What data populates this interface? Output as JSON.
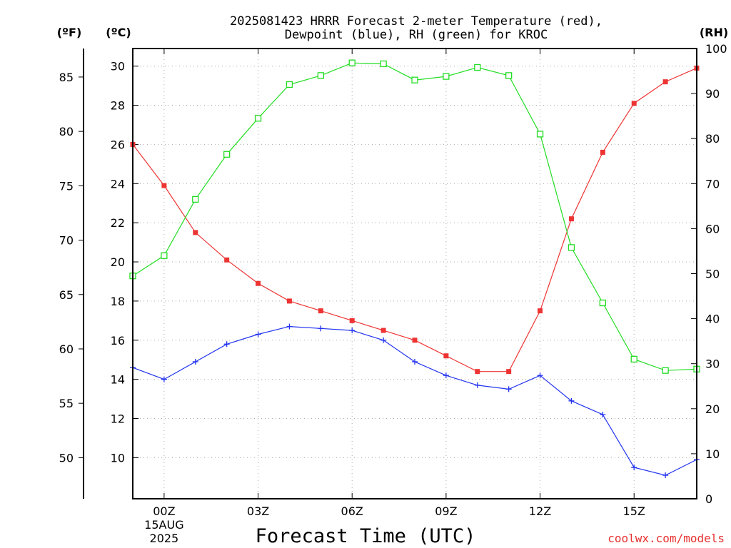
{
  "chart_data": {
    "type": "line",
    "title_lines": [
      "2025081423 HRRR Forecast 2-meter Temperature (red),",
      "Dewpoint (blue), RH (green) for KROC"
    ],
    "xlabel": "Forecast Time (UTC)",
    "credit": "coolwx.com/models",
    "x_ticks": [
      {
        "x": 0,
        "lines": [
          "00Z",
          "15AUG",
          "2025"
        ]
      },
      {
        "x": 3,
        "lines": [
          "03Z"
        ]
      },
      {
        "x": 6,
        "lines": [
          "06Z"
        ]
      },
      {
        "x": 9,
        "lines": [
          "09Z"
        ]
      },
      {
        "x": 12,
        "lines": [
          "12Z"
        ]
      },
      {
        "x": 15,
        "lines": [
          "15Z"
        ]
      }
    ],
    "x": [
      -1,
      0,
      1,
      2,
      3,
      4,
      5,
      6,
      7,
      8,
      9,
      10,
      11,
      12,
      13,
      14,
      15,
      16,
      17
    ],
    "xlim": [
      -1,
      17
    ],
    "axes": {
      "celsius": {
        "unit_label": "(ºC)",
        "range": [
          7.9,
          30.9
        ],
        "ticks": [
          10,
          12,
          14,
          16,
          18,
          20,
          22,
          24,
          26,
          28,
          30
        ]
      },
      "fahrenheit": {
        "unit_label": "(ºF)",
        "ticks": [
          50,
          55,
          60,
          65,
          70,
          75,
          80,
          85
        ]
      },
      "rh": {
        "unit_label": "(RH)",
        "range": [
          0,
          100
        ],
        "ticks": [
          0,
          10,
          20,
          30,
          40,
          50,
          60,
          70,
          80,
          90,
          100
        ]
      }
    },
    "grid": true,
    "series": [
      {
        "name": "Temperature",
        "axis": "celsius",
        "color": "#ee3333",
        "marker": "filled-square",
        "values": [
          26.0,
          23.9,
          21.5,
          20.1,
          18.9,
          18.0,
          17.5,
          17.0,
          16.5,
          16.0,
          15.2,
          14.4,
          14.4,
          17.5,
          22.2,
          25.6,
          28.1,
          29.2,
          29.9
        ]
      },
      {
        "name": "Dewpoint",
        "axis": "celsius",
        "color": "#2233ee",
        "marker": "plus",
        "values": [
          14.6,
          14.0,
          14.9,
          15.8,
          16.3,
          16.7,
          16.6,
          16.5,
          16.0,
          14.9,
          14.2,
          13.7,
          13.5,
          14.2,
          12.9,
          12.2,
          9.5,
          9.1,
          9.9
        ]
      },
      {
        "name": "RH",
        "axis": "rh",
        "color": "#22dd22",
        "marker": "open-square",
        "values": [
          49.5,
          54.0,
          66.5,
          76.5,
          84.5,
          92.0,
          94.0,
          96.8,
          96.6,
          93.0,
          93.8,
          95.8,
          94.0,
          81.0,
          55.8,
          43.5,
          31.0,
          28.5,
          28.8
        ]
      }
    ]
  }
}
